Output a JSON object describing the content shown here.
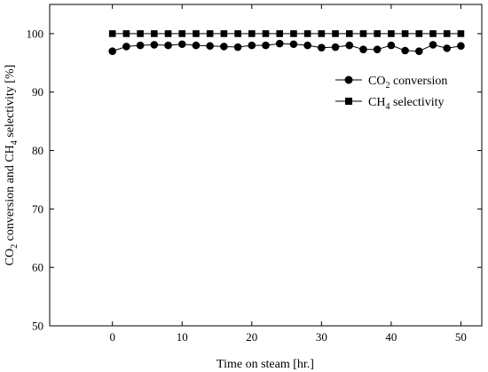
{
  "chart_data": {
    "type": "line",
    "xlabel": "Time on steam [hr.]",
    "ylabel": "CO2 conversion and CH4 selectivity [%]",
    "ylabel_parts": {
      "p1": "CO",
      "p1_sub": "2",
      "p2": " conversion and CH",
      "p2_sub": "4",
      "p3": " selectivity [%]"
    },
    "xlim": [
      -9,
      53
    ],
    "ylim": [
      50,
      105
    ],
    "xticks": [
      0,
      10,
      20,
      30,
      40,
      50
    ],
    "yticks": [
      50,
      60,
      70,
      80,
      90,
      100
    ],
    "grid": false,
    "legend_position": "top-right",
    "series": [
      {
        "name": "CO2 conversion",
        "legend": {
          "main": "CO",
          "sub": "2",
          "rest": " conversion"
        },
        "marker": "circle",
        "x": [
          0,
          2,
          4,
          6,
          8,
          10,
          12,
          14,
          16,
          18,
          20,
          22,
          24,
          26,
          28,
          30,
          32,
          34,
          36,
          38,
          40,
          42,
          44,
          46,
          48,
          50
        ],
        "y": [
          97.0,
          97.8,
          98.0,
          98.1,
          98.0,
          98.2,
          98.0,
          97.9,
          97.8,
          97.7,
          98.0,
          98.0,
          98.3,
          98.2,
          98.0,
          97.6,
          97.7,
          98.0,
          97.3,
          97.3,
          98.0,
          97.1,
          97.0,
          98.1,
          97.5,
          97.9
        ]
      },
      {
        "name": "CH4 selectivity",
        "legend": {
          "main": "CH",
          "sub": "4",
          "rest": " selectivity"
        },
        "marker": "square",
        "x": [
          0,
          2,
          4,
          6,
          8,
          10,
          12,
          14,
          16,
          18,
          20,
          22,
          24,
          26,
          28,
          30,
          32,
          34,
          36,
          38,
          40,
          42,
          44,
          46,
          48,
          50
        ],
        "y": [
          100,
          100,
          100,
          100,
          100,
          100,
          100,
          100,
          100,
          100,
          100,
          100,
          100,
          100,
          100,
          100,
          100,
          100,
          100,
          100,
          100,
          100,
          100,
          100,
          100,
          100
        ]
      }
    ]
  }
}
